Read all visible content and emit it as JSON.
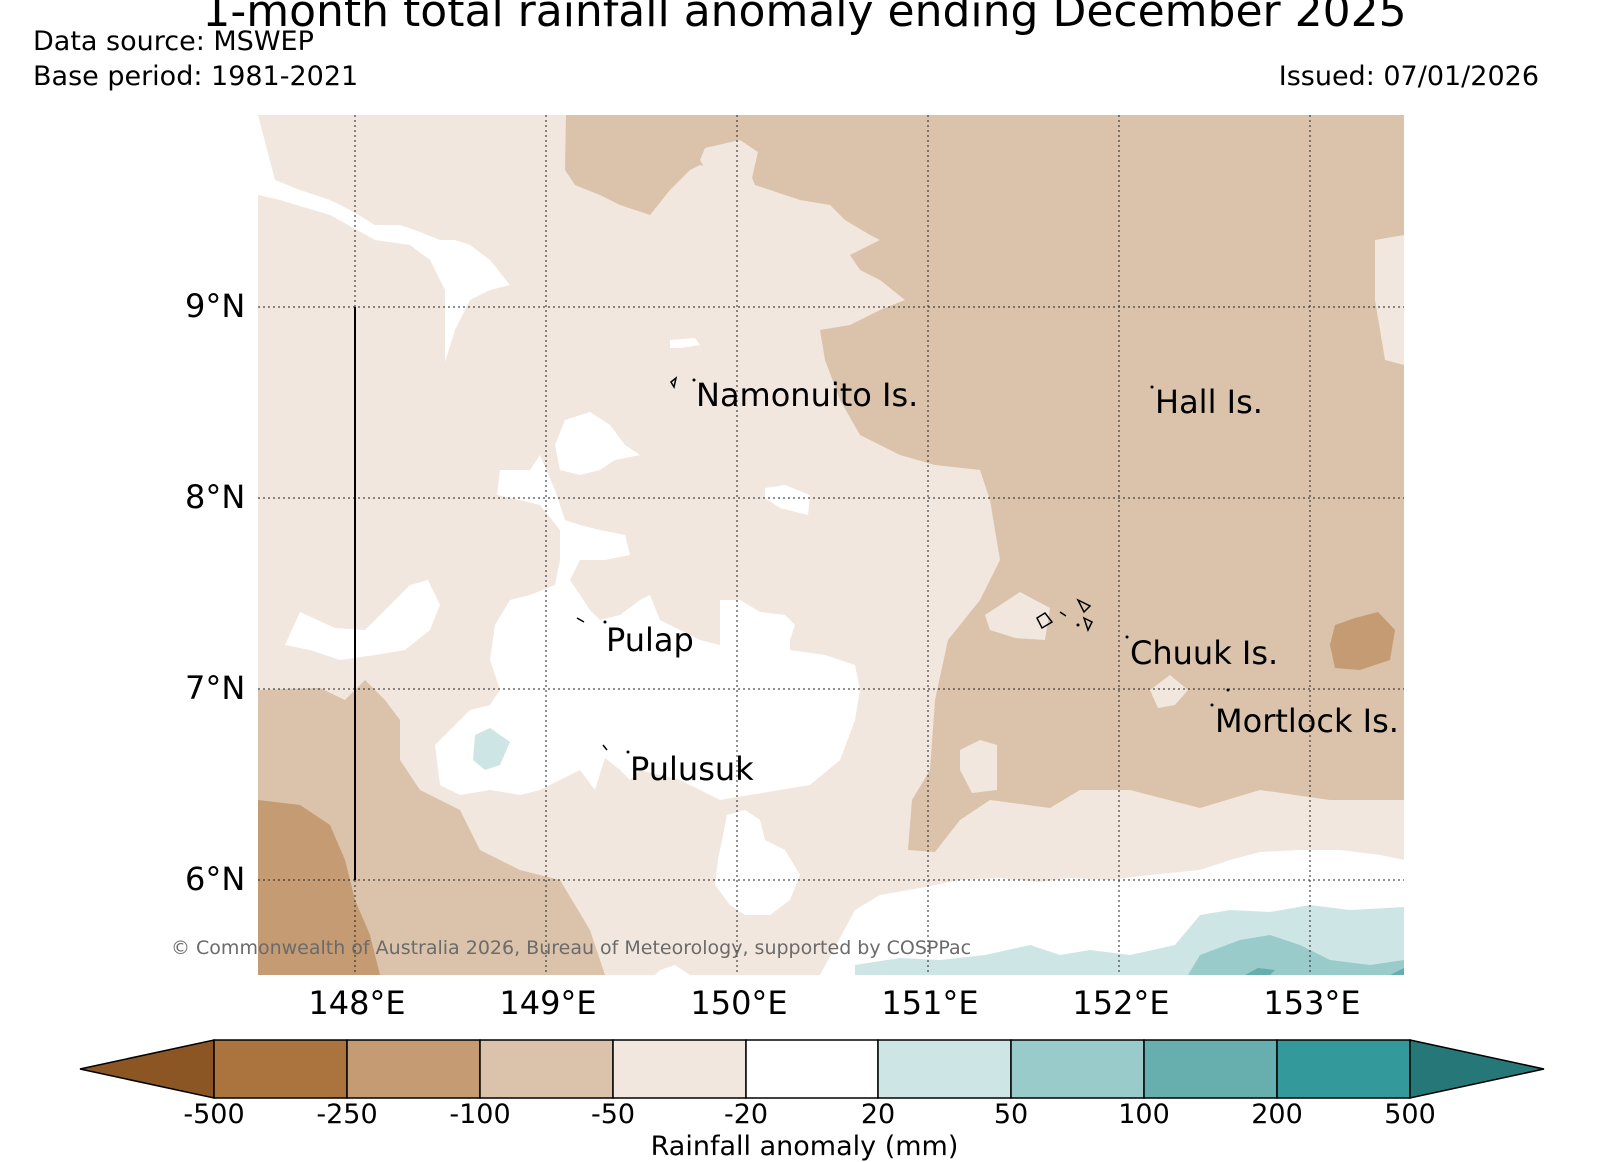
{
  "header": {
    "title": "1-month total rainfall anomaly ending December 2025",
    "data_source": "Data source: MSWEP",
    "base_period": "Base period: 1981-2021",
    "issued": "Issued: 07/01/2026"
  },
  "map": {
    "lat_labels": [
      "9°N",
      "8°N",
      "7°N",
      "6°N"
    ],
    "lon_labels": [
      "148°E",
      "149°E",
      "150°E",
      "151°E",
      "152°E",
      "153°E"
    ],
    "places": [
      "Namonuito Is.",
      "Hall Is.",
      "Pulap",
      "Chuuk Is.",
      "Mortlock Is.",
      "Pulusuk"
    ],
    "copyright": "© Commonwealth of Australia 2026, Bureau of Meteorology, supported by COSPPac"
  },
  "colorbar": {
    "label": "Rainfall anomaly (mm)",
    "ticks": [
      "-500",
      "-250",
      "-100",
      "-50",
      "-20",
      "20",
      "50",
      "100",
      "200",
      "500"
    ],
    "colors": [
      "#8c5524",
      "#ab743e",
      "#c49b72",
      "#dac3aa",
      "#f1e7de",
      "#ffffff",
      "#cde6e5",
      "#98cbca",
      "#66afae",
      "#33999a",
      "#267777"
    ]
  }
}
